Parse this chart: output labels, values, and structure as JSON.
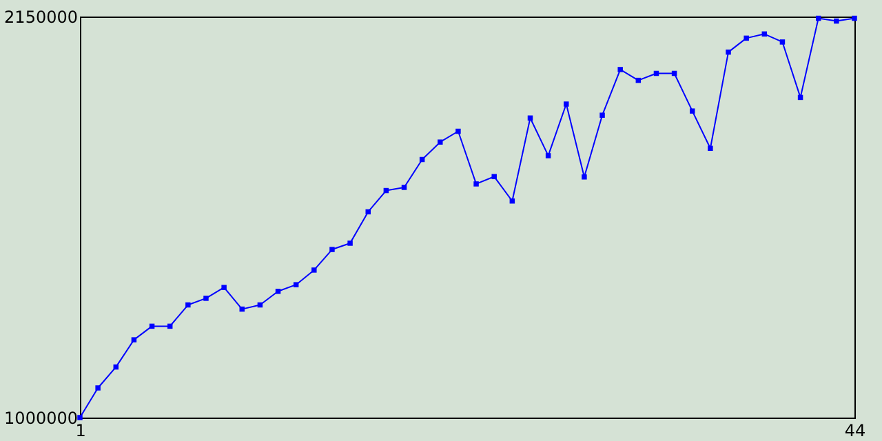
{
  "chart_data": {
    "type": "line",
    "x": [
      1,
      2,
      3,
      4,
      5,
      6,
      7,
      8,
      9,
      10,
      11,
      12,
      13,
      14,
      15,
      16,
      17,
      18,
      19,
      20,
      21,
      22,
      23,
      24,
      25,
      26,
      27,
      28,
      29,
      30,
      31,
      32,
      33,
      34,
      35,
      36,
      37,
      38,
      39,
      40,
      41,
      42,
      43,
      44
    ],
    "values": [
      1000000,
      1085000,
      1145000,
      1223000,
      1262000,
      1262000,
      1323000,
      1342000,
      1373000,
      1311000,
      1323000,
      1362000,
      1381000,
      1423000,
      1482000,
      1500000,
      1590000,
      1651000,
      1660000,
      1740000,
      1790000,
      1821000,
      1670000,
      1691000,
      1621000,
      1859000,
      1751000,
      1899000,
      1690000,
      1867000,
      1998000,
      1967000,
      1987000,
      1987000,
      1879000,
      1772000,
      2048000,
      2088000,
      2100000,
      2077000,
      1918000,
      2145000,
      2137000,
      2145000
    ],
    "color": "#0000ff",
    "marker": "square",
    "line_style": "solid",
    "xlim": [
      1,
      44
    ],
    "xticks": [
      1,
      44
    ],
    "ylim": [
      1000000,
      2150000
    ],
    "yticks": [
      1000000,
      2150000
    ]
  }
}
